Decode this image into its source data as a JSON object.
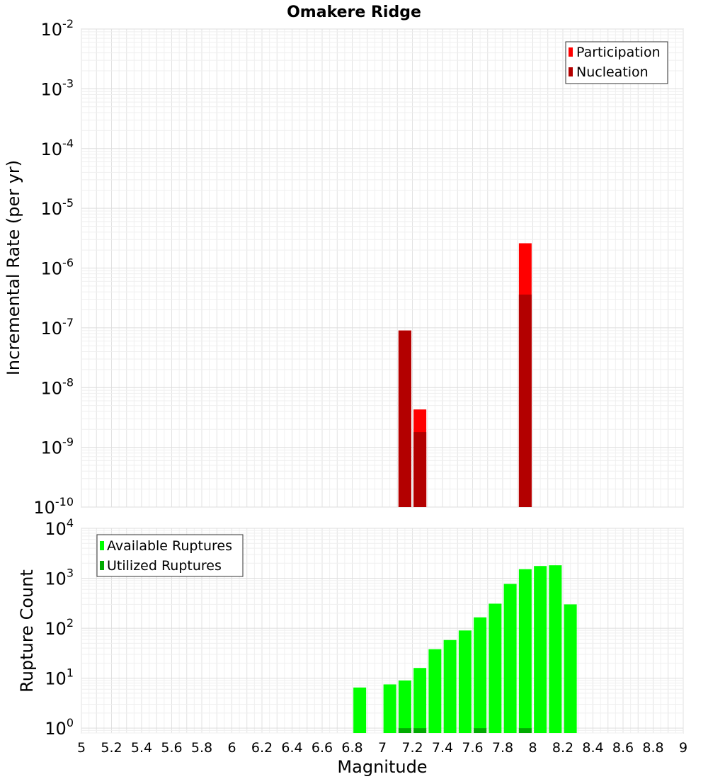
{
  "chart_data": [
    {
      "type": "bar",
      "title": "Omakere Ridge",
      "ylabel": "Incremental Rate (per yr)",
      "xlabel": "",
      "y_scale": "log",
      "ylim": [
        1e-10,
        0.01
      ],
      "xlim": [
        5,
        9
      ],
      "grid": true,
      "legend_position": "top-right",
      "series": [
        {
          "name": "Participation",
          "color": "#ff0000",
          "points": [
            {
              "x": 7.15,
              "y": 9e-08
            },
            {
              "x": 7.25,
              "y": 4.3e-09
            },
            {
              "x": 7.95,
              "y": 2.6e-06
            }
          ]
        },
        {
          "name": "Nucleation",
          "color": "#b30000",
          "points": [
            {
              "x": 7.15,
              "y": 9e-08
            },
            {
              "x": 7.25,
              "y": 1.8e-09
            },
            {
              "x": 7.95,
              "y": 3.6e-07
            }
          ]
        }
      ]
    },
    {
      "type": "bar",
      "title": "",
      "ylabel": "Rupture Count",
      "xlabel": "Magnitude",
      "y_scale": "log",
      "ylim": [
        0.8,
        10000
      ],
      "xlim": [
        5,
        9
      ],
      "grid": true,
      "legend_position": "top-left",
      "x_ticks": [
        "5",
        "5.2",
        "5.4",
        "5.6",
        "5.8",
        "6",
        "6.2",
        "6.4",
        "6.6",
        "6.8",
        "7",
        "7.2",
        "7.4",
        "7.6",
        "7.8",
        "8",
        "8.2",
        "8.4",
        "8.6",
        "8.8",
        "9"
      ],
      "series": [
        {
          "name": "Available Ruptures",
          "color": "#00ff00",
          "points": [
            {
              "x": 6.85,
              "y": 6.5
            },
            {
              "x": 7.05,
              "y": 7.5
            },
            {
              "x": 7.15,
              "y": 9
            },
            {
              "x": 7.25,
              "y": 16
            },
            {
              "x": 7.35,
              "y": 38
            },
            {
              "x": 7.45,
              "y": 58
            },
            {
              "x": 7.55,
              "y": 90
            },
            {
              "x": 7.65,
              "y": 165
            },
            {
              "x": 7.75,
              "y": 310
            },
            {
              "x": 7.85,
              "y": 770
            },
            {
              "x": 7.95,
              "y": 1520
            },
            {
              "x": 8.05,
              "y": 1760
            },
            {
              "x": 8.15,
              "y": 1820
            },
            {
              "x": 8.25,
              "y": 300
            }
          ]
        },
        {
          "name": "Utilized Ruptures",
          "color": "#00aa00",
          "points": [
            {
              "x": 7.15,
              "y": 1
            },
            {
              "x": 7.25,
              "y": 1
            },
            {
              "x": 7.65,
              "y": 1
            },
            {
              "x": 7.95,
              "y": 1
            }
          ]
        }
      ]
    }
  ]
}
